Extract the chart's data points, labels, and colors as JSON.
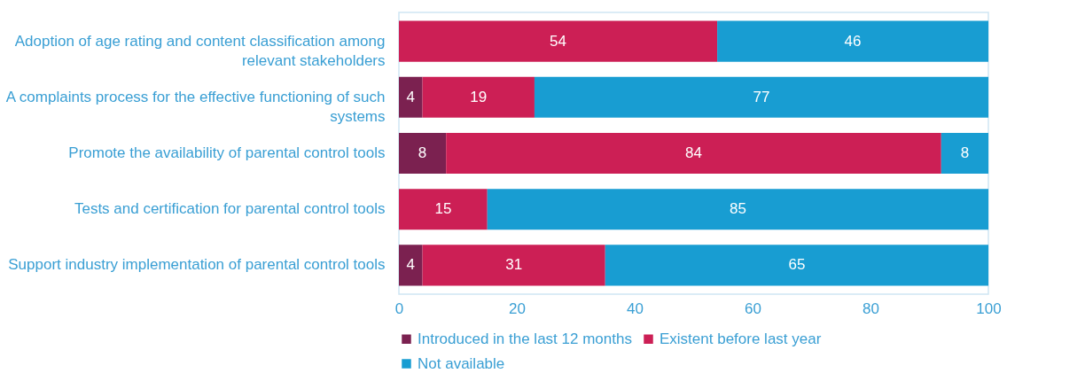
{
  "chart_data": {
    "type": "bar",
    "orientation": "horizontal",
    "stacked": true,
    "categories": [
      "Adoption of age rating and content classification among relevant stakeholders",
      "A complaints process for the effective functioning of such systems",
      "Promote the availability of parental control tools",
      "Tests and certification for parental control tools",
      "Support industry implementation of parental control tools"
    ],
    "series": [
      {
        "name": "Introduced in the last 12 months",
        "color": "#7b2150",
        "values": [
          null,
          4,
          8,
          null,
          4
        ]
      },
      {
        "name": "Existent before last year",
        "color": "#cc1f55",
        "values": [
          54,
          19,
          84,
          15,
          31
        ]
      },
      {
        "name": "Not available",
        "color": "#189dd2",
        "values": [
          46,
          77,
          8,
          85,
          65
        ]
      }
    ],
    "xlim": [
      0,
      100
    ],
    "xticks": [
      0,
      20,
      40,
      60,
      80,
      100
    ],
    "grid": false,
    "legend": "bottom",
    "data_labels": true
  }
}
